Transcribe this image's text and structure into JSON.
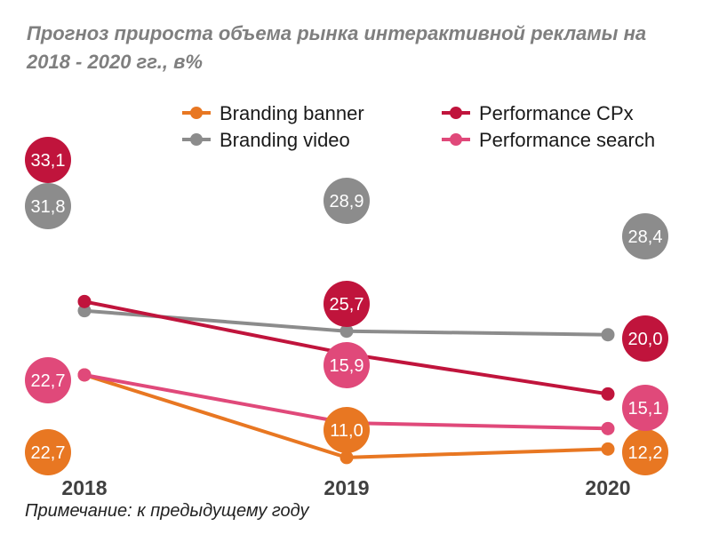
{
  "chart_data": {
    "type": "line",
    "title": "Прогноз прироста объема рынка интерактивной рекламы на 2018 - 2020 гг., в%",
    "categories": [
      "2018",
      "2019",
      "2020"
    ],
    "series": [
      {
        "name": "Branding banner",
        "color": "#e87722",
        "values": [
          22.7,
          11.0,
          12.2
        ],
        "labels": [
          "22,7",
          "11,0",
          "12,2"
        ]
      },
      {
        "name": "Branding video",
        "color": "#8c8c8c",
        "values": [
          31.8,
          28.9,
          28.4
        ],
        "labels": [
          "31,8",
          "28,9",
          "28,4"
        ]
      },
      {
        "name": "Performance CPx",
        "color": "#c0143c",
        "values": [
          33.1,
          25.7,
          20.0
        ],
        "labels": [
          "33,1",
          "25,7",
          "20,0"
        ]
      },
      {
        "name": "Performance search",
        "color": "#e0497a",
        "values": [
          22.7,
          15.9,
          15.1
        ],
        "labels": [
          "22,7",
          "15,9",
          "15,1"
        ]
      }
    ],
    "legend": "top",
    "grid": false
  },
  "note": "Примечание: к предыдущему году"
}
